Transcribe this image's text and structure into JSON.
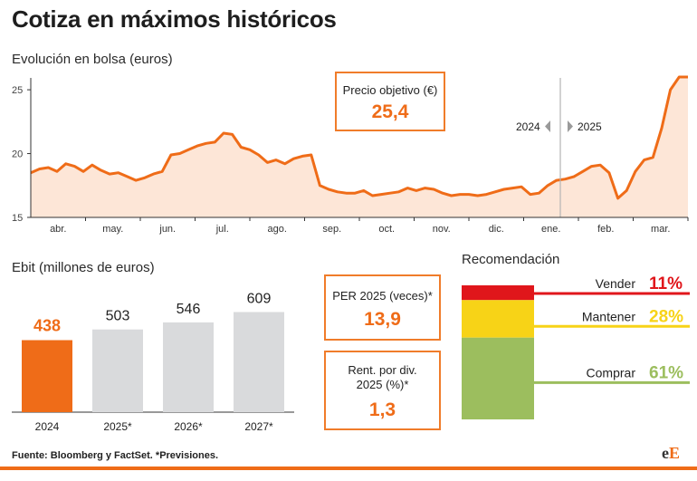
{
  "title": "Cotiza en máximos históricos",
  "stock": {
    "subtitle": "Evolución en bolsa (euros)",
    "target_label": "Precio objetivo (€)",
    "target_value": "25,4",
    "year_left": "2024",
    "year_right": "2025"
  },
  "ebit": {
    "subtitle": "Ebit (millones de euros)"
  },
  "per": {
    "label": "PER 2025 (veces)*",
    "value": "13,9"
  },
  "div": {
    "label_line1": "Rent. por div.",
    "label_line2": "2025 (%)*",
    "value": "1,3"
  },
  "rec": {
    "subtitle": "Recomendación"
  },
  "source": "Fuente: Bloomberg y FactSet. *Previsiones.",
  "logo": {
    "part1": "e",
    "part2": "E"
  },
  "colors": {
    "accent": "#ef6c18",
    "area_fill": "#fde6d7",
    "bar_grey": "#d9dadc",
    "sell": "#e0161b",
    "hold": "#f7d317",
    "buy": "#9cbe5e"
  },
  "chart_data": [
    {
      "type": "area",
      "title": "Evolución en bolsa (euros)",
      "xlabel": "",
      "ylabel": "",
      "ylim": [
        15,
        26
      ],
      "yticks": [
        "15",
        "20",
        "25"
      ],
      "x_tick_labels": [
        "abr.",
        "may.",
        "jun.",
        "jul.",
        "ago.",
        "sep.",
        "oct.",
        "nov.",
        "dic.",
        "ene.",
        "feb.",
        "mar."
      ],
      "grid": false,
      "series": [
        {
          "values": [
            18.5,
            18.8,
            18.9,
            18.6,
            19.2,
            19.0,
            18.6,
            19.1,
            18.7,
            18.4,
            18.5,
            18.2,
            17.9,
            18.1,
            18.4,
            18.6,
            19.9,
            20.0,
            20.3,
            20.6,
            20.8,
            20.9,
            21.6,
            21.5,
            20.5,
            20.3,
            19.9,
            19.3,
            19.5,
            19.2,
            19.6,
            19.8,
            19.9,
            17.5,
            17.2,
            17.0,
            16.9,
            16.9,
            17.1,
            16.7,
            16.8,
            16.9,
            17.0,
            17.3,
            17.1,
            17.3,
            17.2,
            16.9,
            16.7,
            16.8,
            16.8,
            16.7,
            16.8,
            17.0,
            17.2,
            17.3,
            17.4,
            16.8,
            16.9,
            17.5,
            17.9,
            18.0,
            18.2,
            18.6,
            19.0,
            19.1,
            18.5,
            16.5,
            17.1,
            18.6,
            19.5,
            19.7,
            22.0,
            25.0,
            26.0,
            26.0
          ]
        }
      ]
    },
    {
      "type": "bar",
      "title": "Ebit (millones de euros)",
      "categories": [
        "2024",
        "2025*",
        "2026*",
        "2027*"
      ],
      "values": [
        438,
        503,
        546,
        609
      ],
      "value_labels": [
        "438",
        "503",
        "546",
        "609"
      ],
      "highlight_index": 0
    },
    {
      "type": "bar",
      "title": "Recomendación",
      "categories": [
        "Vender",
        "Mantener",
        "Comprar"
      ],
      "values": [
        11,
        28,
        61
      ],
      "value_labels": [
        "11%",
        "28%",
        "61%"
      ],
      "stacked": true
    }
  ]
}
